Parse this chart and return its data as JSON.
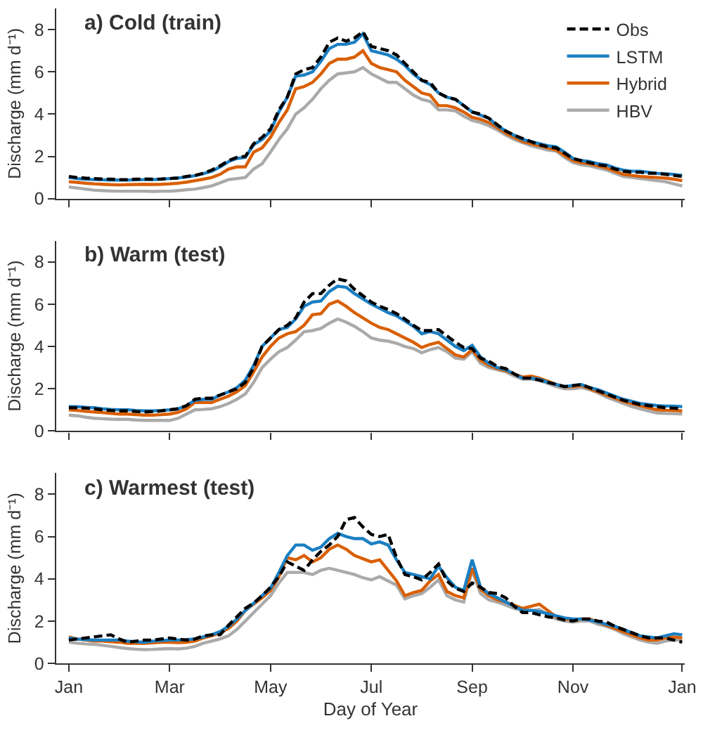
{
  "chart_data": [
    {
      "type": "line",
      "title": "a) Cold (train)",
      "ylabel": "Discharge (mm d⁻¹)",
      "legend": "top right",
      "tick_labels": "y",
      "categories": [
        null,
        null,
        null,
        null,
        null,
        null,
        null,
        null,
        null,
        null,
        null,
        null,
        null,
        null,
        null,
        null,
        null,
        null,
        null,
        null,
        null,
        null,
        null,
        null,
        null,
        null,
        null,
        null,
        null,
        null,
        null,
        null,
        null,
        null,
        null,
        null,
        null,
        null,
        null,
        null,
        null,
        null,
        null,
        null,
        null,
        null,
        null,
        null,
        null,
        null,
        null,
        null,
        null,
        null,
        null,
        null,
        null,
        null,
        null,
        null,
        null,
        null,
        null,
        null,
        null,
        null,
        null,
        null,
        null,
        null,
        null,
        null,
        null,
        null
      ],
      "ylim": [
        0,
        9
      ],
      "yticks": [
        0,
        2,
        4,
        6,
        8
      ],
      "series": [
        {
          "name": "Obs",
          "color": "#000000",
          "line_style": "dashed",
          "values": [
            1.05,
            1.0,
            0.97,
            0.95,
            0.93,
            0.92,
            0.9,
            0.9,
            0.92,
            0.93,
            0.92,
            0.93,
            0.95,
            0.98,
            1.05,
            1.1,
            1.2,
            1.35,
            1.55,
            1.8,
            1.95,
            2.0,
            2.6,
            2.9,
            3.3,
            4.2,
            4.8,
            5.9,
            6.1,
            6.2,
            6.7,
            7.4,
            7.6,
            7.45,
            7.6,
            7.9,
            7.2,
            7.1,
            7.0,
            6.8,
            6.4,
            6.0,
            5.6,
            5.5,
            5.0,
            4.8,
            4.7,
            4.4,
            4.1,
            4.0,
            3.8,
            3.5,
            3.2,
            3.0,
            2.85,
            2.7,
            2.55,
            2.45,
            2.4,
            2.15,
            1.9,
            1.8,
            1.7,
            1.6,
            1.55,
            1.4,
            1.3,
            1.25,
            1.25,
            1.2,
            1.2,
            1.15,
            1.1,
            1.05
          ]
        },
        {
          "name": "LSTM",
          "color": "#1b7fc2",
          "line_style": "solid",
          "values": [
            1.0,
            0.95,
            0.92,
            0.9,
            0.89,
            0.88,
            0.88,
            0.88,
            0.89,
            0.9,
            0.9,
            0.92,
            0.95,
            0.98,
            1.03,
            1.08,
            1.18,
            1.3,
            1.5,
            1.75,
            1.9,
            1.95,
            2.55,
            2.8,
            3.2,
            4.1,
            4.8,
            5.8,
            5.85,
            6.0,
            6.5,
            7.1,
            7.3,
            7.3,
            7.4,
            7.8,
            7.0,
            6.9,
            6.8,
            6.6,
            6.3,
            5.9,
            5.6,
            5.4,
            5.0,
            4.8,
            4.7,
            4.4,
            4.1,
            3.95,
            3.8,
            3.45,
            3.2,
            3.0,
            2.8,
            2.7,
            2.6,
            2.5,
            2.45,
            2.2,
            1.9,
            1.8,
            1.75,
            1.65,
            1.6,
            1.45,
            1.35,
            1.3,
            1.3,
            1.25,
            1.2,
            1.18,
            1.15,
            1.1
          ]
        },
        {
          "name": "Hybrid",
          "color": "#d95f02",
          "line_style": "solid",
          "values": [
            0.8,
            0.77,
            0.73,
            0.7,
            0.68,
            0.66,
            0.65,
            0.66,
            0.67,
            0.68,
            0.67,
            0.68,
            0.7,
            0.73,
            0.78,
            0.85,
            0.92,
            1.0,
            1.15,
            1.4,
            1.5,
            1.5,
            2.2,
            2.4,
            2.9,
            3.6,
            4.2,
            5.2,
            5.3,
            5.5,
            5.9,
            6.4,
            6.6,
            6.6,
            6.7,
            7.0,
            6.4,
            6.2,
            6.1,
            6.0,
            5.6,
            5.3,
            5.0,
            4.9,
            4.4,
            4.4,
            4.3,
            4.1,
            3.85,
            3.75,
            3.6,
            3.35,
            3.1,
            2.9,
            2.7,
            2.6,
            2.5,
            2.4,
            2.3,
            2.05,
            1.8,
            1.7,
            1.65,
            1.55,
            1.45,
            1.3,
            1.15,
            1.1,
            1.05,
            1.02,
            1.0,
            0.97,
            0.92,
            0.85
          ]
        },
        {
          "name": "HBV",
          "color": "#aaaaaa",
          "line_style": "solid",
          "values": [
            0.55,
            0.5,
            0.45,
            0.4,
            0.38,
            0.36,
            0.35,
            0.35,
            0.35,
            0.35,
            0.34,
            0.35,
            0.35,
            0.38,
            0.42,
            0.45,
            0.52,
            0.6,
            0.75,
            0.9,
            0.95,
            1.0,
            1.4,
            1.65,
            2.2,
            2.8,
            3.3,
            4.0,
            4.3,
            4.7,
            5.2,
            5.6,
            5.9,
            5.95,
            6.0,
            6.2,
            5.9,
            5.7,
            5.5,
            5.5,
            5.2,
            4.9,
            4.7,
            4.6,
            4.2,
            4.2,
            4.15,
            3.9,
            3.7,
            3.6,
            3.45,
            3.25,
            3.0,
            2.8,
            2.65,
            2.5,
            2.4,
            2.3,
            2.25,
            1.95,
            1.7,
            1.6,
            1.55,
            1.45,
            1.35,
            1.2,
            1.05,
            1.0,
            0.95,
            0.9,
            0.85,
            0.8,
            0.7,
            0.6
          ]
        }
      ]
    },
    {
      "type": "line",
      "title": "b) Warm (test)",
      "ylabel": "Discharge (mm d⁻¹)",
      "tick_labels": "y",
      "categories": [
        null,
        null,
        null,
        null,
        null,
        null,
        null,
        null,
        null,
        null,
        null,
        null,
        null,
        null,
        null,
        null,
        null,
        null,
        null,
        null,
        null,
        null,
        null,
        null,
        null,
        null,
        null,
        null,
        null,
        null,
        null,
        null,
        null,
        null,
        null,
        null,
        null,
        null,
        null,
        null,
        null,
        null,
        null,
        null,
        null,
        null,
        null,
        null,
        null,
        null,
        null,
        null,
        null,
        null,
        null,
        null,
        null,
        null,
        null,
        null,
        null,
        null,
        null,
        null,
        null,
        null,
        null,
        null,
        null,
        null,
        null,
        null,
        null,
        null
      ],
      "ylim": [
        0,
        9
      ],
      "yticks": [
        0,
        2,
        4,
        6,
        8
      ],
      "series": [
        {
          "color": "#000000",
          "line_style": "dashed",
          "values": [
            1.1,
            1.1,
            1.08,
            1.05,
            1.0,
            0.97,
            0.95,
            0.95,
            0.92,
            0.9,
            0.92,
            0.95,
            1.0,
            1.05,
            1.2,
            1.5,
            1.55,
            1.55,
            1.7,
            1.85,
            2.0,
            2.3,
            3.0,
            4.0,
            4.4,
            4.8,
            5.0,
            5.35,
            6.1,
            6.5,
            6.5,
            6.9,
            7.2,
            7.1,
            6.7,
            6.4,
            6.1,
            5.9,
            5.75,
            5.55,
            5.3,
            5.0,
            4.75,
            4.75,
            4.8,
            4.5,
            4.2,
            3.95,
            3.9,
            3.45,
            3.3,
            3.05,
            2.95,
            2.7,
            2.5,
            2.5,
            2.4,
            2.3,
            2.2,
            2.1,
            2.15,
            2.2,
            2.05,
            1.9,
            1.75,
            1.6,
            1.45,
            1.35,
            1.25,
            1.2,
            1.15,
            1.1,
            1.08,
            1.05
          ]
        },
        {
          "color": "#1b7fc2",
          "line_style": "solid",
          "values": [
            1.15,
            1.15,
            1.12,
            1.1,
            1.05,
            1.02,
            1.0,
            1.0,
            0.97,
            0.95,
            0.95,
            0.97,
            1.0,
            1.05,
            1.2,
            1.45,
            1.5,
            1.5,
            1.7,
            1.85,
            2.05,
            2.4,
            3.1,
            4.0,
            4.4,
            4.8,
            4.9,
            5.3,
            5.9,
            6.1,
            6.15,
            6.6,
            6.85,
            6.8,
            6.5,
            6.25,
            6.0,
            5.8,
            5.6,
            5.45,
            5.2,
            4.95,
            4.6,
            4.7,
            4.6,
            4.3,
            4.0,
            3.8,
            4.05,
            3.5,
            3.2,
            3.0,
            2.9,
            2.7,
            2.5,
            2.5,
            2.45,
            2.3,
            2.2,
            2.1,
            2.15,
            2.2,
            2.05,
            1.95,
            1.8,
            1.65,
            1.5,
            1.4,
            1.3,
            1.25,
            1.2,
            1.18,
            1.18,
            1.15
          ]
        },
        {
          "color": "#d95f02",
          "line_style": "solid",
          "values": [
            1.0,
            0.97,
            0.93,
            0.9,
            0.87,
            0.83,
            0.8,
            0.8,
            0.77,
            0.75,
            0.75,
            0.77,
            0.8,
            0.88,
            1.05,
            1.35,
            1.35,
            1.35,
            1.5,
            1.65,
            1.85,
            2.15,
            2.8,
            3.5,
            4.0,
            4.4,
            4.6,
            4.7,
            5.0,
            5.5,
            5.55,
            6.0,
            6.15,
            5.9,
            5.6,
            5.35,
            5.1,
            4.9,
            4.8,
            4.6,
            4.4,
            4.2,
            3.95,
            4.1,
            4.2,
            3.9,
            3.6,
            3.5,
            3.85,
            3.35,
            3.1,
            2.95,
            2.85,
            2.7,
            2.55,
            2.6,
            2.5,
            2.35,
            2.2,
            2.1,
            2.1,
            2.15,
            2.0,
            1.85,
            1.7,
            1.55,
            1.4,
            1.3,
            1.2,
            1.1,
            1.0,
            0.98,
            0.97,
            0.95
          ]
        },
        {
          "color": "#aaaaaa",
          "line_style": "solid",
          "values": [
            0.75,
            0.72,
            0.65,
            0.6,
            0.58,
            0.56,
            0.55,
            0.55,
            0.52,
            0.5,
            0.5,
            0.5,
            0.5,
            0.6,
            0.8,
            1.0,
            1.02,
            1.05,
            1.15,
            1.3,
            1.5,
            1.75,
            2.3,
            3.0,
            3.4,
            3.75,
            3.95,
            4.3,
            4.7,
            4.75,
            4.85,
            5.1,
            5.3,
            5.15,
            4.95,
            4.7,
            4.4,
            4.3,
            4.25,
            4.15,
            4.0,
            3.9,
            3.7,
            3.85,
            3.95,
            3.75,
            3.45,
            3.4,
            3.75,
            3.2,
            3.0,
            2.9,
            2.8,
            2.6,
            2.45,
            2.45,
            2.4,
            2.25,
            2.1,
            2.0,
            2.0,
            2.05,
            1.95,
            1.8,
            1.6,
            1.45,
            1.3,
            1.15,
            1.05,
            0.95,
            0.85,
            0.83,
            0.82,
            0.8
          ]
        }
      ]
    },
    {
      "type": "line",
      "title": "c) Warmest (test)",
      "ylabel": "Discharge (mm d⁻¹)",
      "xlabel": "Day of Year",
      "categories": [
        "Jan",
        null,
        null,
        null,
        null,
        null,
        null,
        null,
        null,
        null,
        null,
        null,
        "Mar",
        null,
        null,
        null,
        null,
        null,
        null,
        null,
        null,
        null,
        null,
        null,
        "May",
        null,
        null,
        null,
        null,
        null,
        null,
        null,
        null,
        null,
        null,
        null,
        "Jul",
        null,
        null,
        null,
        null,
        null,
        null,
        null,
        null,
        null,
        null,
        null,
        "Sep",
        null,
        null,
        null,
        null,
        null,
        null,
        null,
        null,
        null,
        null,
        null,
        "Nov",
        null,
        null,
        null,
        null,
        null,
        null,
        null,
        null,
        null,
        null,
        null,
        null,
        "Jan"
      ],
      "ylim": [
        0,
        9
      ],
      "yticks": [
        0,
        2,
        4,
        6,
        8
      ],
      "series": [
        {
          "color": "#000000",
          "line_style": "dashed",
          "values": [
            1.1,
            1.15,
            1.2,
            1.25,
            1.3,
            1.35,
            1.15,
            1.0,
            1.05,
            1.1,
            1.1,
            1.15,
            1.2,
            1.15,
            1.1,
            1.15,
            1.3,
            1.35,
            1.35,
            1.8,
            2.2,
            2.6,
            2.85,
            3.2,
            3.6,
            4.1,
            4.8,
            4.6,
            4.4,
            4.9,
            5.3,
            5.6,
            6.0,
            6.8,
            6.9,
            6.45,
            6.1,
            6.0,
            6.1,
            5.0,
            4.2,
            4.1,
            3.95,
            4.3,
            4.7,
            3.9,
            3.55,
            3.4,
            3.8,
            3.6,
            3.35,
            3.3,
            3.1,
            2.7,
            2.4,
            2.4,
            2.3,
            2.2,
            2.15,
            2.05,
            2.0,
            2.1,
            2.1,
            2.0,
            1.95,
            1.75,
            1.6,
            1.45,
            1.3,
            1.2,
            1.2,
            1.2,
            1.1,
            1.0
          ]
        },
        {
          "color": "#1b7fc2",
          "line_style": "solid",
          "values": [
            1.2,
            1.15,
            1.12,
            1.1,
            1.1,
            1.1,
            1.1,
            1.05,
            1.02,
            1.0,
            1.05,
            1.08,
            1.1,
            1.1,
            1.12,
            1.15,
            1.25,
            1.35,
            1.5,
            1.75,
            2.1,
            2.5,
            2.85,
            3.2,
            3.55,
            4.3,
            5.1,
            5.6,
            5.6,
            5.35,
            5.5,
            5.9,
            6.15,
            6.0,
            5.9,
            5.9,
            5.65,
            5.75,
            5.6,
            4.9,
            4.3,
            4.2,
            4.1,
            4.0,
            4.6,
            4.05,
            3.6,
            3.45,
            4.9,
            3.6,
            3.3,
            3.1,
            2.9,
            2.7,
            2.5,
            2.5,
            2.45,
            2.35,
            2.25,
            2.15,
            2.1,
            2.1,
            2.05,
            1.95,
            1.85,
            1.75,
            1.6,
            1.45,
            1.3,
            1.25,
            1.2,
            1.3,
            1.4,
            1.35
          ]
        },
        {
          "color": "#d95f02",
          "line_style": "solid",
          "values": [
            1.25,
            1.15,
            1.1,
            1.05,
            1.05,
            1.02,
            1.0,
            0.95,
            0.95,
            0.95,
            0.97,
            1.0,
            1.0,
            0.98,
            1.0,
            1.05,
            1.2,
            1.3,
            1.45,
            1.65,
            2.0,
            2.5,
            2.8,
            3.1,
            3.45,
            4.1,
            5.0,
            4.9,
            5.1,
            4.8,
            5.0,
            5.4,
            5.6,
            5.4,
            5.1,
            4.95,
            4.8,
            4.9,
            4.4,
            3.9,
            3.2,
            3.35,
            3.45,
            3.9,
            4.2,
            3.4,
            3.2,
            3.1,
            4.5,
            3.5,
            3.2,
            3.0,
            2.9,
            2.75,
            2.6,
            2.7,
            2.8,
            2.5,
            2.2,
            2.1,
            2.05,
            2.1,
            2.1,
            1.95,
            1.8,
            1.65,
            1.5,
            1.35,
            1.2,
            1.1,
            1.1,
            1.2,
            1.25,
            1.2
          ]
        },
        {
          "color": "#aaaaaa",
          "line_style": "solid",
          "values": [
            1.0,
            0.95,
            0.92,
            0.9,
            0.85,
            0.8,
            0.75,
            0.7,
            0.67,
            0.65,
            0.66,
            0.68,
            0.7,
            0.68,
            0.72,
            0.8,
            0.95,
            1.05,
            1.15,
            1.3,
            1.6,
            2.0,
            2.4,
            2.8,
            3.2,
            3.8,
            4.3,
            4.3,
            4.3,
            4.2,
            4.4,
            4.5,
            4.4,
            4.3,
            4.2,
            4.05,
            3.95,
            4.1,
            3.9,
            3.7,
            3.05,
            3.2,
            3.3,
            3.6,
            3.95,
            3.2,
            3.0,
            2.9,
            4.4,
            3.3,
            3.0,
            2.9,
            2.75,
            2.6,
            2.5,
            2.5,
            2.55,
            2.3,
            2.1,
            2.0,
            1.95,
            2.0,
            2.0,
            1.85,
            1.75,
            1.6,
            1.4,
            1.25,
            1.1,
            1.0,
            0.95,
            1.05,
            1.1,
            1.1
          ]
        }
      ]
    }
  ]
}
